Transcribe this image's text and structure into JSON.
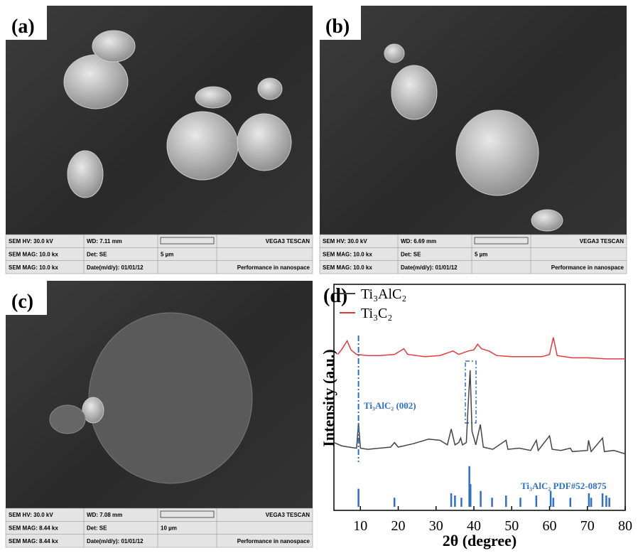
{
  "panels": [
    {
      "label": "(a)",
      "hv": "SEM HV: 30.0 kV",
      "wd": "WD: 7.11 mm",
      "brand": "VEGA3 TESCAN",
      "mag": "SEM MAG: 10.0 kx",
      "det": "Det: SE",
      "scale": "5 µm",
      "mag2": "SEM MAG: 10.0 kx",
      "date": "Date(m/d/y): 01/01/12",
      "slogan": "Performance in nanospace"
    },
    {
      "label": "(b)",
      "hv": "SEM HV: 30.0 kV",
      "wd": "WD: 6.69 mm",
      "brand": "VEGA3 TESCAN",
      "mag": "SEM MAG: 10.0 kx",
      "det": "Det: SE",
      "scale": "5 µm",
      "mag2": "SEM MAG: 10.0 kx",
      "date": "Date(m/d/y): 01/01/12",
      "slogan": "Performance in nanospace"
    },
    {
      "label": "(c)",
      "hv": "SEM HV: 30.0 kV",
      "wd": "WD: 7.08 mm",
      "brand": "VEGA3 TESCAN",
      "mag": "SEM MAG: 8.44 kx",
      "det": "Det: SE",
      "scale": "10 µm",
      "mag2": "SEM MAG: 8.44 kx",
      "date": "Date(m/d/y): 01/01/12",
      "slogan": "Performance in nanospace"
    }
  ],
  "chart_data": {
    "type": "line",
    "label": "(d)",
    "x_label": "2θ (degree)",
    "y_label": "Intensity (a.u.)",
    "xlim": [
      3,
      80
    ],
    "xticks": [
      10,
      20,
      30,
      40,
      50,
      60,
      70,
      80
    ],
    "ylim": [
      0,
      100
    ],
    "annotation": "Ti₃AlC₂ (002)",
    "series": [
      {
        "name": "Ti₃AlC₂",
        "color": "#444444",
        "x": [
          3,
          5,
          7,
          9,
          9.5,
          10,
          12,
          15,
          18,
          19,
          20,
          24,
          28,
          31,
          33,
          34,
          35,
          36,
          36.5,
          37,
          38,
          38.5,
          39,
          39.5,
          40.5,
          41.7,
          42.5,
          45,
          48.5,
          49,
          52,
          55,
          56.5,
          57,
          60,
          60.7,
          63,
          65.5,
          66,
          70,
          70.3,
          71,
          74,
          74.5,
          77,
          80
        ],
        "values": [
          30,
          28.6,
          28,
          27.5,
          38.7,
          27.5,
          27,
          27.5,
          28,
          30,
          28,
          29.5,
          31.5,
          31,
          29,
          36,
          29,
          30,
          32,
          29,
          30,
          47,
          62,
          35,
          29,
          38,
          28,
          27,
          31,
          27,
          27.5,
          26.5,
          31,
          26.5,
          33,
          27,
          26.5,
          27.5,
          26,
          26.5,
          31,
          26,
          32,
          26,
          26.5,
          25
        ]
      },
      {
        "name": "Ti₃C₂",
        "color": "#e03c3c",
        "x": [
          4,
          5,
          6.5,
          7.5,
          9,
          12,
          15,
          19,
          21.5,
          22.5,
          27,
          31,
          34.5,
          36,
          38.5,
          40,
          41,
          42,
          44,
          46,
          50,
          55,
          58,
          60,
          61,
          62,
          66,
          70,
          75,
          80
        ],
        "values": [
          69,
          71,
          75,
          71,
          69,
          68.5,
          68.5,
          69,
          71.5,
          69,
          68,
          68.5,
          70.5,
          69,
          70.5,
          71,
          73.5,
          71.5,
          70.5,
          68.5,
          68,
          68,
          68,
          69,
          76.5,
          68.5,
          67.5,
          67.5,
          67,
          67
        ]
      }
    ],
    "reference": {
      "name": "Ti₃AlC₂ PDF#52-0875",
      "color": "#2f6fc4",
      "x": [
        9.5,
        19,
        34,
        35,
        36.7,
        38.8,
        39.1,
        41.8,
        44.8,
        48.5,
        52.3,
        56.5,
        60.3,
        61,
        65.5,
        70.4,
        71,
        74,
        75,
        75.8
      ],
      "values": [
        8,
        4,
        6,
        5,
        4,
        18,
        10,
        7,
        4,
        5,
        4,
        5,
        7,
        4,
        4,
        6,
        4,
        6,
        5,
        4
      ]
    }
  }
}
